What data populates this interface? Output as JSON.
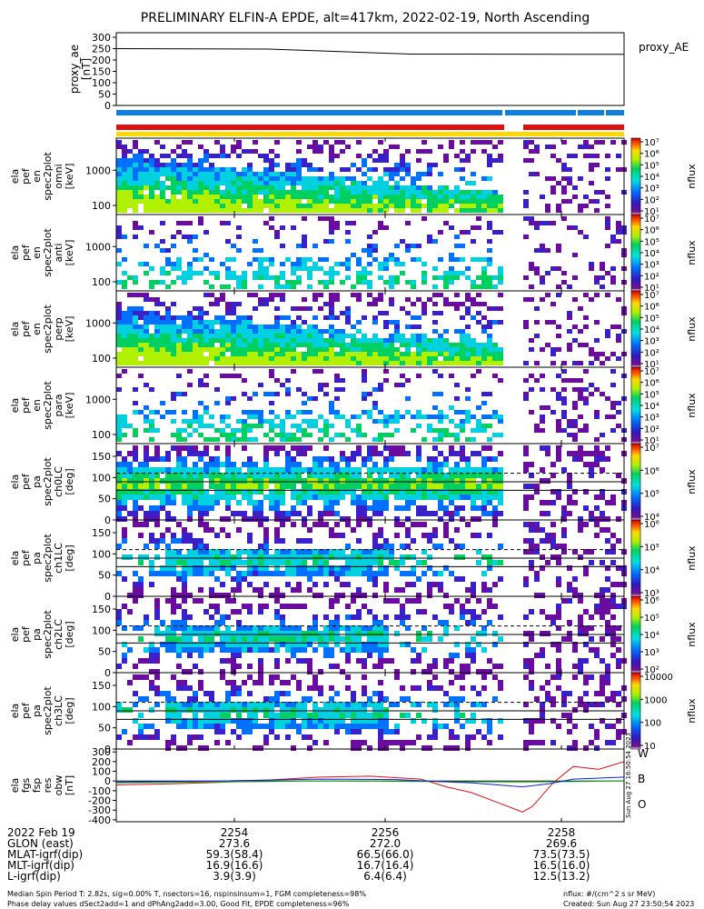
{
  "title": "PRELIMINARY ELFIN-A EPDE, alt=417km, 2022-02-19, North Ascending",
  "timestamp_vertical": "Sun Aug 27 16:50:54 2023",
  "colors": {
    "bar_blue": "#0a7fe0",
    "bar_red": "#e01010",
    "bar_yellow": "#ffd800",
    "line_w": "#e01010",
    "line_b": "#10b010",
    "line_o": "#1020e0"
  },
  "chart_data": [
    {
      "type": "line",
      "id": "proxy_ae",
      "ylabel_lines": [
        "proxy_ae",
        "[nT]"
      ],
      "legend": "proxy_AE",
      "yticks": [
        "300",
        "250",
        "200",
        "150",
        "100",
        "50",
        "0"
      ],
      "ylim": [
        0,
        320
      ],
      "x": [
        0,
        0.3,
        0.58,
        1.0
      ],
      "values": [
        250,
        248,
        226,
        225
      ]
    },
    {
      "type": "heatmap",
      "id": "en_1",
      "ylabel_lines": [
        "ela",
        "pef",
        "en",
        "spec2plot",
        "omni",
        "[keV]"
      ],
      "yticks": [
        "1000",
        "100"
      ],
      "cbar_label": "nflux",
      "cbar_ticks": [
        "10⁷",
        "10⁶",
        "10⁵",
        "10⁴",
        "10³",
        "10²",
        "10¹"
      ]
    },
    {
      "type": "heatmap",
      "id": "en_2",
      "ylabel_lines": [
        "ela",
        "pef",
        "en",
        "spec2plot",
        "anti",
        "[keV]"
      ],
      "yticks": [
        "1000",
        "100"
      ],
      "cbar_label": "nflux",
      "cbar_ticks": [
        "10⁷",
        "10⁶",
        "10⁵",
        "10⁴",
        "10³",
        "10²",
        "10¹"
      ]
    },
    {
      "type": "heatmap",
      "id": "en_3",
      "ylabel_lines": [
        "ela",
        "pef",
        "en",
        "spec2plot",
        "perp",
        "[keV]"
      ],
      "yticks": [
        "1000",
        "100"
      ],
      "cbar_label": "nflux",
      "cbar_ticks": [
        "10⁷",
        "10⁶",
        "10⁵",
        "10⁴",
        "10³",
        "10²",
        "10¹"
      ]
    },
    {
      "type": "heatmap",
      "id": "en_4",
      "ylabel_lines": [
        "ela",
        "pef",
        "en",
        "spec2plot",
        "para",
        "[keV]"
      ],
      "yticks": [
        "1000",
        "100"
      ],
      "cbar_label": "nflux",
      "cbar_ticks": [
        "10⁷",
        "10⁶",
        "10⁵",
        "10⁴",
        "10³",
        "10²",
        "10¹"
      ]
    },
    {
      "type": "heatmap",
      "id": "pa_0",
      "ylabel_lines": [
        "ela",
        "pef",
        "pa",
        "spec2plot",
        "ch0LC",
        "[deg]"
      ],
      "yticks": [
        "150",
        "100",
        "50",
        "0"
      ],
      "cbar_label": "nflux",
      "cbar_ticks": [
        "10⁷",
        "10⁶",
        "10⁵",
        "10⁴"
      ]
    },
    {
      "type": "heatmap",
      "id": "pa_1",
      "ylabel_lines": [
        "ela",
        "pef",
        "pa",
        "spec2plot",
        "ch1LC",
        "[deg]"
      ],
      "yticks": [
        "150",
        "100",
        "50",
        "0"
      ],
      "cbar_label": "nflux",
      "cbar_ticks": [
        "10⁶",
        "10⁵",
        "10⁴",
        "10³"
      ]
    },
    {
      "type": "heatmap",
      "id": "pa_2",
      "ylabel_lines": [
        "ela",
        "pef",
        "pa",
        "spec2plot",
        "ch2LC",
        "[deg]"
      ],
      "yticks": [
        "150",
        "100",
        "50",
        "0"
      ],
      "cbar_label": "nflux",
      "cbar_ticks": [
        "10⁶",
        "10⁵",
        "10⁴",
        "10³",
        "10²"
      ]
    },
    {
      "type": "heatmap",
      "id": "pa_3",
      "ylabel_lines": [
        "ela",
        "pef",
        "pa",
        "spec2plot",
        "ch3LC",
        "[deg]"
      ],
      "yticks": [
        "150",
        "100",
        "50",
        "0"
      ],
      "cbar_label": "nflux",
      "cbar_ticks": [
        "10000",
        "1000",
        "100",
        "10"
      ]
    },
    {
      "type": "line",
      "id": "fgs",
      "ylabel_lines": [
        "ela",
        "fgs",
        "fsp",
        "res",
        "obw",
        "[nT]"
      ],
      "yticks": [
        "300",
        "200",
        "100",
        "0",
        "-100",
        "-200",
        "-300",
        "-400"
      ],
      "ylim": [
        -420,
        330
      ],
      "series": [
        {
          "name": "W",
          "x": [
            0,
            0.1,
            0.2,
            0.3,
            0.4,
            0.5,
            0.6,
            0.65,
            0.7,
            0.75,
            0.8,
            0.82,
            0.86,
            0.9,
            0.95,
            1.0
          ],
          "values": [
            -40,
            -30,
            -15,
            10,
            40,
            50,
            20,
            -60,
            -120,
            -220,
            -320,
            -260,
            -20,
            150,
            120,
            200
          ]
        },
        {
          "name": "B",
          "x": [
            0,
            0.2,
            0.4,
            0.6,
            0.8,
            1.0
          ],
          "values": [
            -20,
            -10,
            0,
            -5,
            -10,
            0
          ]
        },
        {
          "name": "O",
          "x": [
            0,
            0.2,
            0.4,
            0.55,
            0.7,
            0.8,
            0.85,
            0.9,
            1.0
          ],
          "values": [
            -10,
            0,
            20,
            15,
            -20,
            -60,
            -30,
            20,
            40
          ]
        }
      ]
    }
  ],
  "time_axis": {
    "ticks": [
      "2254",
      "2256",
      "2258"
    ]
  },
  "footer_rows": [
    {
      "label": "2022 Feb 19",
      "v": [
        "2254",
        "2256",
        "2258"
      ]
    },
    {
      "label": "GLON (east)",
      "v": [
        "273.6",
        "272.0",
        "269.6"
      ]
    },
    {
      "label": "MLAT-igrf(dip)",
      "v": [
        "59.3(58.4)",
        "66.5(66.0)",
        "73.5(73.5)"
      ]
    },
    {
      "label": "MLT-igrf(dip)",
      "v": [
        "16.9(16.6)",
        "16.7(16.4)",
        "16.5(16.0)"
      ]
    },
    {
      "label": "L-igrf(dip)",
      "v": [
        "3.9(3.9)",
        "6.4(6.4)",
        "12.5(13.2)"
      ]
    }
  ],
  "footer_notes": {
    "line1": "Median Spin Period T: 2.82s, sig=0.00% T, nsectors=16, nspinsinsum=1, FGM completeness=98%",
    "line2": "Phase delay values dSect2add=1 and dPhAng2add=3.00, Good Fit, EPDE completeness=96%",
    "nflux_units": "nflux: #/(cm^2 s sr MeV)",
    "created": "Created: Sun Aug 27 23:50:54 2023"
  }
}
